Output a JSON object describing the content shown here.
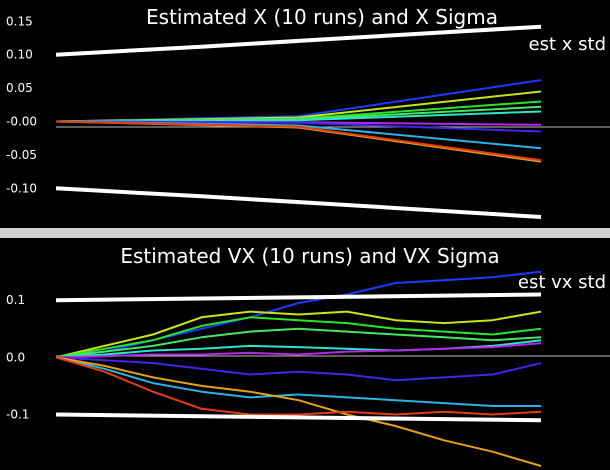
{
  "chart_data": [
    {
      "type": "line",
      "title": "Estimated X (10 runs) and X Sigma",
      "legend": [
        "est x std"
      ],
      "legend_position": "top-right",
      "ylim": [
        -0.155,
        0.155
      ],
      "xlim": [
        0,
        1
      ],
      "grid": false,
      "yticks": [
        "0.15",
        "0.10",
        "0.05",
        "-0.00",
        "-0.05",
        "-0.10"
      ],
      "ytick_values": [
        0.15,
        0.1,
        0.05,
        0.0,
        -0.05,
        -0.1
      ],
      "sigma": {
        "color": "#ffffff",
        "upper": [
          [
            0.0,
            0.1
          ],
          [
            0.3,
            0.112
          ],
          [
            0.6,
            0.125
          ],
          [
            1.0,
            0.142
          ]
        ],
        "lower": [
          [
            0.0,
            -0.1
          ],
          [
            0.3,
            -0.112
          ],
          [
            0.6,
            -0.125
          ],
          [
            1.0,
            -0.143
          ]
        ]
      },
      "series": [
        {
          "color": "#1a3cff",
          "points": [
            [
              0,
              0
            ],
            [
              0.5,
              0.008
            ],
            [
              1.0,
              0.062
            ]
          ]
        },
        {
          "color": "#c8e614",
          "points": [
            [
              0,
              0
            ],
            [
              0.5,
              0.006
            ],
            [
              1.0,
              0.045
            ]
          ]
        },
        {
          "color": "#28e628",
          "points": [
            [
              0,
              0
            ],
            [
              0.5,
              0.004
            ],
            [
              1.0,
              0.03
            ]
          ]
        },
        {
          "color": "#46e664",
          "points": [
            [
              0,
              0
            ],
            [
              0.5,
              0.003
            ],
            [
              1.0,
              0.022
            ]
          ]
        },
        {
          "color": "#28e6c8",
          "points": [
            [
              0,
              0
            ],
            [
              0.5,
              0.002
            ],
            [
              1.0,
              0.015
            ]
          ]
        },
        {
          "color": "#b428e6",
          "points": [
            [
              0,
              0
            ],
            [
              0.5,
              -0.001
            ],
            [
              1.0,
              -0.005
            ]
          ]
        },
        {
          "color": "#3c28e6",
          "points": [
            [
              0,
              0
            ],
            [
              0.5,
              -0.002
            ],
            [
              1.0,
              -0.015
            ]
          ]
        },
        {
          "color": "#28b4e6",
          "points": [
            [
              0,
              0
            ],
            [
              0.5,
              -0.006
            ],
            [
              1.0,
              -0.04
            ]
          ]
        },
        {
          "color": "#e6a014",
          "points": [
            [
              0,
              0
            ],
            [
              0.5,
              -0.009
            ],
            [
              1.0,
              -0.06
            ]
          ]
        },
        {
          "color": "#e63c14",
          "points": [
            [
              0,
              0
            ],
            [
              0.5,
              -0.008
            ],
            [
              1.0,
              -0.058
            ]
          ]
        }
      ]
    },
    {
      "type": "line",
      "title": "Estimated VX (10 runs) and VX Sigma",
      "legend": [
        "est vx std"
      ],
      "legend_position": "top-right",
      "ylim": [
        -0.19,
        0.2
      ],
      "xlim": [
        0,
        1
      ],
      "grid": false,
      "yticks": [
        "0.1",
        "0.0",
        "-0.1"
      ],
      "ytick_values": [
        0.1,
        0.0,
        -0.1
      ],
      "sigma": {
        "color": "#ffffff",
        "upper": [
          [
            0.0,
            0.1
          ],
          [
            1.0,
            0.11
          ]
        ],
        "lower": [
          [
            0.0,
            -0.1
          ],
          [
            1.0,
            -0.11
          ]
        ]
      },
      "series": [
        {
          "color": "#1a3cff",
          "points": [
            [
              0,
              0
            ],
            [
              0.1,
              0.01
            ],
            [
              0.2,
              0.03
            ],
            [
              0.3,
              0.05
            ],
            [
              0.4,
              0.07
            ],
            [
              0.5,
              0.095
            ],
            [
              0.6,
              0.11
            ],
            [
              0.7,
              0.13
            ],
            [
              0.8,
              0.135
            ],
            [
              0.9,
              0.14
            ],
            [
              1.0,
              0.15
            ]
          ]
        },
        {
          "color": "#c8e614",
          "points": [
            [
              0,
              0
            ],
            [
              0.1,
              0.02
            ],
            [
              0.2,
              0.04
            ],
            [
              0.3,
              0.07
            ],
            [
              0.4,
              0.08
            ],
            [
              0.5,
              0.075
            ],
            [
              0.6,
              0.08
            ],
            [
              0.7,
              0.065
            ],
            [
              0.8,
              0.06
            ],
            [
              0.9,
              0.065
            ],
            [
              1.0,
              0.08
            ]
          ]
        },
        {
          "color": "#28e628",
          "points": [
            [
              0,
              0
            ],
            [
              0.1,
              0.015
            ],
            [
              0.2,
              0.03
            ],
            [
              0.3,
              0.055
            ],
            [
              0.4,
              0.07
            ],
            [
              0.5,
              0.065
            ],
            [
              0.6,
              0.06
            ],
            [
              0.7,
              0.05
            ],
            [
              0.8,
              0.045
            ],
            [
              0.9,
              0.04
            ],
            [
              1.0,
              0.05
            ]
          ]
        },
        {
          "color": "#46e664",
          "points": [
            [
              0,
              0
            ],
            [
              0.1,
              0.01
            ],
            [
              0.2,
              0.02
            ],
            [
              0.3,
              0.035
            ],
            [
              0.4,
              0.045
            ],
            [
              0.5,
              0.05
            ],
            [
              0.6,
              0.045
            ],
            [
              0.7,
              0.04
            ],
            [
              0.8,
              0.035
            ],
            [
              0.9,
              0.03
            ],
            [
              1.0,
              0.035
            ]
          ]
        },
        {
          "color": "#28e6c8",
          "points": [
            [
              0,
              0
            ],
            [
              0.1,
              0.005
            ],
            [
              0.2,
              0.012
            ],
            [
              0.3,
              0.015
            ],
            [
              0.4,
              0.02
            ],
            [
              0.5,
              0.018
            ],
            [
              0.6,
              0.015
            ],
            [
              0.7,
              0.012
            ],
            [
              0.8,
              0.015
            ],
            [
              0.9,
              0.02
            ],
            [
              1.0,
              0.03
            ]
          ]
        },
        {
          "color": "#b428e6",
          "points": [
            [
              0,
              0
            ],
            [
              0.1,
              0.002
            ],
            [
              0.2,
              0.005
            ],
            [
              0.3,
              0.005
            ],
            [
              0.4,
              0.008
            ],
            [
              0.5,
              0.005
            ],
            [
              0.6,
              0.01
            ],
            [
              0.7,
              0.012
            ],
            [
              0.8,
              0.015
            ],
            [
              0.9,
              0.018
            ],
            [
              1.0,
              0.025
            ]
          ]
        },
        {
          "color": "#3c28e6",
          "points": [
            [
              0,
              0
            ],
            [
              0.1,
              -0.005
            ],
            [
              0.2,
              -0.01
            ],
            [
              0.3,
              -0.02
            ],
            [
              0.4,
              -0.03
            ],
            [
              0.5,
              -0.025
            ],
            [
              0.6,
              -0.03
            ],
            [
              0.7,
              -0.04
            ],
            [
              0.8,
              -0.035
            ],
            [
              0.9,
              -0.03
            ],
            [
              1.0,
              -0.01
            ]
          ]
        },
        {
          "color": "#28b4e6",
          "points": [
            [
              0,
              0
            ],
            [
              0.1,
              -0.02
            ],
            [
              0.2,
              -0.045
            ],
            [
              0.3,
              -0.06
            ],
            [
              0.4,
              -0.07
            ],
            [
              0.5,
              -0.065
            ],
            [
              0.6,
              -0.07
            ],
            [
              0.7,
              -0.075
            ],
            [
              0.8,
              -0.08
            ],
            [
              0.9,
              -0.085
            ],
            [
              1.0,
              -0.085
            ]
          ]
        },
        {
          "color": "#e6a014",
          "points": [
            [
              0,
              0
            ],
            [
              0.1,
              -0.015
            ],
            [
              0.2,
              -0.035
            ],
            [
              0.3,
              -0.05
            ],
            [
              0.4,
              -0.06
            ],
            [
              0.5,
              -0.075
            ],
            [
              0.6,
              -0.1
            ],
            [
              0.7,
              -0.12
            ],
            [
              0.8,
              -0.145
            ],
            [
              0.9,
              -0.165
            ],
            [
              1.0,
              -0.19
            ]
          ]
        },
        {
          "color": "#e63c14",
          "points": [
            [
              0,
              0
            ],
            [
              0.1,
              -0.025
            ],
            [
              0.2,
              -0.06
            ],
            [
              0.3,
              -0.09
            ],
            [
              0.4,
              -0.1
            ],
            [
              0.5,
              -0.1
            ],
            [
              0.6,
              -0.095
            ],
            [
              0.7,
              -0.1
            ],
            [
              0.8,
              -0.095
            ],
            [
              0.9,
              -0.1
            ],
            [
              1.0,
              -0.095
            ]
          ]
        }
      ]
    }
  ]
}
